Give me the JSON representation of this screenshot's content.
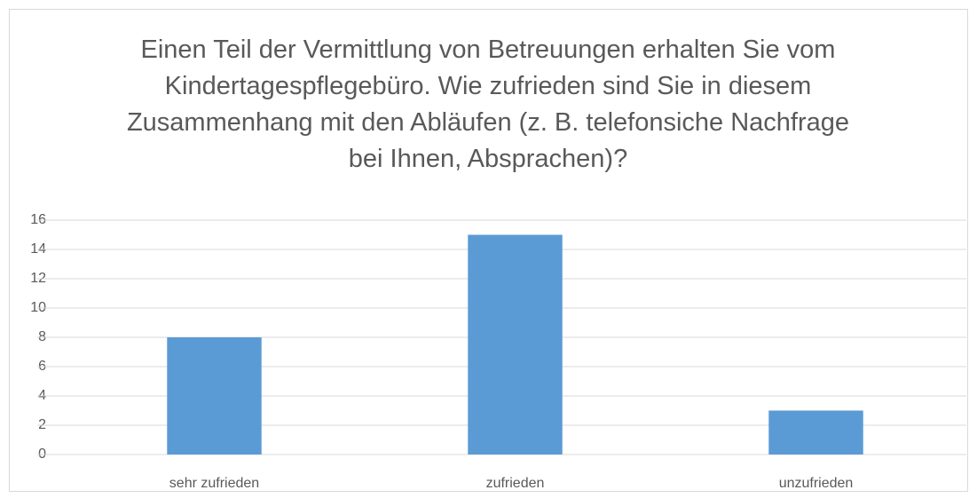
{
  "chart_data": {
    "type": "bar",
    "title": "Einen Teil der Vermittlung von Betreuungen erhalten Sie vom Kindertagespflegebüro. Wie zufrieden sind Sie in diesem Zusammenhang mit den Abläufen (z. B. telefonsiche Nachfrage bei Ihnen, Absprachen)?",
    "categories": [
      "sehr zufrieden",
      "zufrieden",
      "unzufrieden"
    ],
    "values": [
      8,
      15,
      3
    ],
    "color": "#5b9bd5",
    "ylim": [
      0,
      16
    ],
    "yticks": [
      0,
      2,
      4,
      6,
      8,
      10,
      12,
      14,
      16
    ],
    "grid": true
  }
}
